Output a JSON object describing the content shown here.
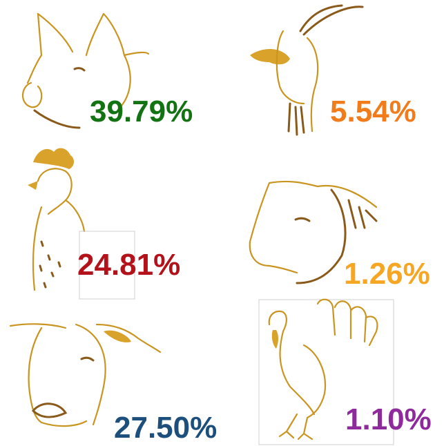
{
  "items": [
    {
      "label": "39.79%",
      "color": "#137313"
    },
    {
      "label": "5.54%",
      "color": "#f07c1c"
    },
    {
      "label": "24.81%",
      "color": "#b3121a"
    },
    {
      "label": "1.26%",
      "color": "#f6a623"
    },
    {
      "label": "27.50%",
      "color": "#1d4f7c"
    },
    {
      "label": "1.10%",
      "color": "#8e2a9c"
    }
  ]
}
